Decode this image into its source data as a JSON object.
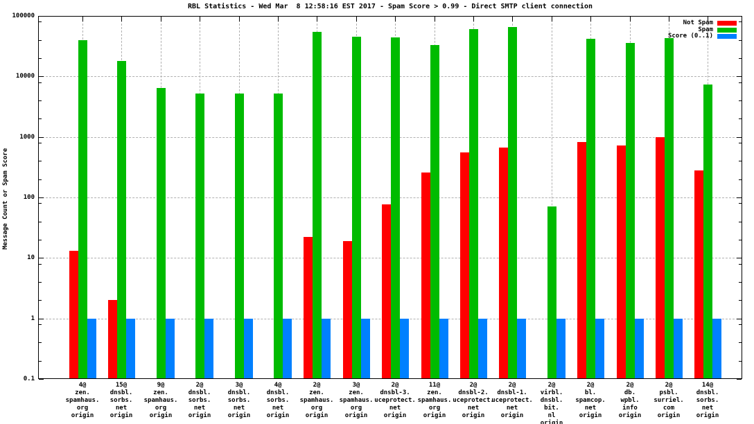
{
  "chart_data": {
    "type": "bar",
    "title": "RBL Statistics - Wed Mar  8 12:58:16 EST 2017 - Spam Score > 0.99 - Direct SMTP client connection",
    "xlabel": "",
    "ylabel": "Message Count or Spam Score",
    "y_scale": "log",
    "ylim": [
      0.1,
      100000
    ],
    "y_tick_values": [
      0.1,
      1,
      10,
      100,
      1000,
      10000,
      100000
    ],
    "y_tick_labels": [
      "0.1",
      "1",
      "10",
      "100",
      "1000",
      "10000",
      "100000"
    ],
    "y_minor_tick_multiples": [
      2,
      4,
      8
    ],
    "grid": true,
    "legend_position": "top-right-inside",
    "grid_color": "#b0b0b0",
    "categories": [
      "4@\nzen.\nspamhaus.\norg\norigin",
      "15@\ndnsbl.\nsorbs.\nnet\norigin",
      "9@\nzen.\nspamhaus.\norg\norigin",
      "2@\ndnsbl.\nsorbs.\nnet\norigin",
      "3@\ndnsbl.\nsorbs.\nnet\norigin",
      "4@\ndnsbl.\nsorbs.\nnet\norigin",
      "2@\nzen.\nspamhaus.\norg\norigin",
      "3@\nzen.\nspamhaus.\norg\norigin",
      "2@\ndnsbl-3.\nuceprotect.\nnet\norigin",
      "11@\nzen.\nspamhaus.\norg\norigin",
      "2@\ndnsbl-2.\nuceprotect.\nnet\norigin",
      "2@\ndnsbl-1.\nuceprotect.\nnet\norigin",
      "2@\nvirbl.\ndnsbl.\nbit.\nnl\norigin",
      "2@\nbl.\nspamcop.\nnet\norigin",
      "2@\ndb.\nwpbl.\ninfo\norigin",
      "2@\npsbl.\nsurriel.\ncom\norigin",
      "14@\ndnsbl.\nsorbs.\nnet\norigin"
    ],
    "series": [
      {
        "name": "Not Spam",
        "color": "#ff0000",
        "values": [
          13,
          2,
          null,
          null,
          null,
          null,
          22,
          19,
          77,
          260,
          560,
          660,
          null,
          820,
          720,
          1000,
          280
        ]
      },
      {
        "name": "Spam",
        "color": "#00bb00",
        "values": [
          40000,
          18000,
          6500,
          5200,
          5200,
          5200,
          54000,
          45000,
          44000,
          33000,
          60000,
          65000,
          71,
          42000,
          36000,
          43000,
          7400
        ]
      },
      {
        "name": "Score (0..1)",
        "color": "#0080ff",
        "values": [
          1,
          1,
          1,
          1,
          1,
          1,
          1,
          1,
          1,
          1,
          1,
          1,
          1,
          1,
          1,
          1,
          1
        ]
      }
    ]
  }
}
